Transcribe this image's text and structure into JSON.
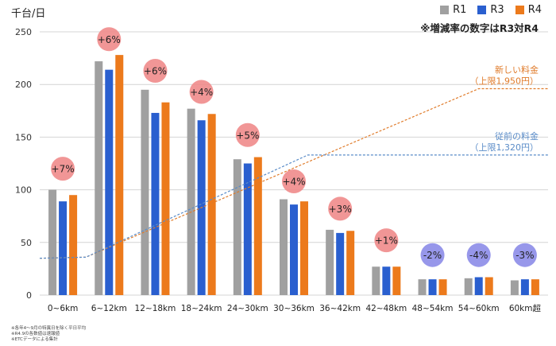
{
  "chart_data": {
    "type": "bar",
    "ylabel": "千台/日",
    "ylim": [
      0,
      250
    ],
    "yticks": [
      0,
      50,
      100,
      150,
      200,
      250
    ],
    "grid": true,
    "legend_position": "top-right",
    "categories": [
      "0~6km",
      "6~12km",
      "12~18km",
      "18~24km",
      "24~30km",
      "30~36km",
      "36~42km",
      "42~48km",
      "48~54km",
      "54~60km",
      "60km超"
    ],
    "series": [
      {
        "name": "R1",
        "color": "#a0a0a0",
        "values": [
          100,
          222,
          195,
          177,
          129,
          91,
          62,
          27,
          15,
          16,
          14
        ]
      },
      {
        "name": "R3",
        "color": "#2a5fcf",
        "values": [
          89,
          214,
          173,
          166,
          125,
          86,
          59,
          27,
          15,
          17,
          15
        ]
      },
      {
        "name": "R4",
        "color": "#ec7a1c",
        "values": [
          95,
          228,
          183,
          172,
          131,
          89,
          61,
          27,
          15,
          17,
          15
        ]
      }
    ],
    "change_labels": [
      "+7%",
      "+6%",
      "+6%",
      "+4%",
      "+5%",
      "+4%",
      "+3%",
      "+1%",
      "-2%",
      "-4%",
      "-3%"
    ],
    "change_label_y": [
      120,
      243,
      213,
      193,
      152,
      108,
      82,
      52,
      38,
      38,
      38
    ],
    "change_colors": {
      "positive": "#f08b8b",
      "negative": "#8c8ce8"
    },
    "annotation": "※増減率の数字はR3対R4",
    "new_fee": {
      "label_line1": "新しい料金",
      "label_line2": "（上限1,950円）",
      "color": "#e07b2a",
      "points": [
        [
          -0.5,
          35
        ],
        [
          0.5,
          36
        ],
        [
          9.0,
          196
        ],
        [
          10.5,
          196
        ]
      ]
    },
    "old_fee": {
      "label_line1": "従前の料金",
      "label_line2": "（上限1,320円）",
      "color": "#5a8cc8",
      "points": [
        [
          -0.5,
          35
        ],
        [
          0.5,
          36
        ],
        [
          5.3,
          133
        ],
        [
          10.5,
          133
        ]
      ]
    }
  },
  "footnotes": [
    "※各年4～9月の特異日を除く平日平均",
    "※R4.9の各数値は速報値",
    "※ETCデータによる集計"
  ]
}
